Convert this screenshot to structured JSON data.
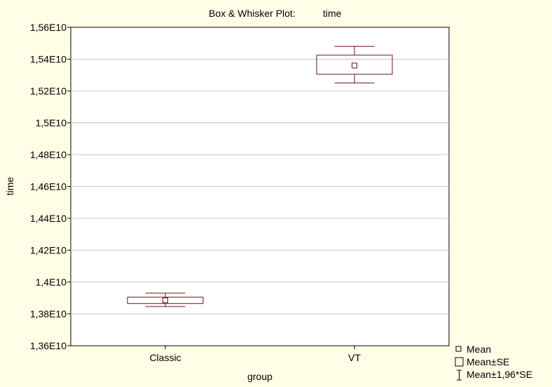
{
  "chart_data": {
    "type": "boxplot",
    "title_prefix": "Box & Whisker Plot:",
    "title_variable": "time",
    "xlabel": "group",
    "ylabel": "time",
    "categories": [
      "Classic",
      "VT"
    ],
    "boxes": [
      {
        "category": "Classic",
        "mean": 13885000000,
        "mean_minus_se": 13865000000,
        "mean_plus_se": 13905000000,
        "mean_minus_196se": 13846000000,
        "mean_plus_196se": 13930000000
      },
      {
        "category": "VT",
        "mean": 15360000000,
        "mean_minus_se": 15305000000,
        "mean_plus_se": 15425000000,
        "mean_minus_196se": 15250000000,
        "mean_plus_196se": 15480000000
      }
    ],
    "ylim": [
      13600000000,
      15600000000
    ],
    "yticks": [
      13600000000,
      13800000000,
      14000000000,
      14200000000,
      14400000000,
      14600000000,
      14800000000,
      15000000000,
      15200000000,
      15400000000,
      15600000000
    ],
    "ytick_labels": [
      "1,36E10",
      "1,38E10",
      "1,4E10",
      "1,42E10",
      "1,44E10",
      "1,46E10",
      "1,48E10",
      "1,5E10",
      "1,52E10",
      "1,54E10",
      "1,56E10"
    ],
    "grid": true,
    "legend_position": "bottom-right",
    "legend": [
      "Mean",
      "Mean±SE",
      "Mean±1,96*SE"
    ],
    "colors": {
      "mark": "#6b1414",
      "grid": "#c8c8c8",
      "plot_bg": "#ffffff",
      "page_bg": "#ffffe8"
    }
  }
}
